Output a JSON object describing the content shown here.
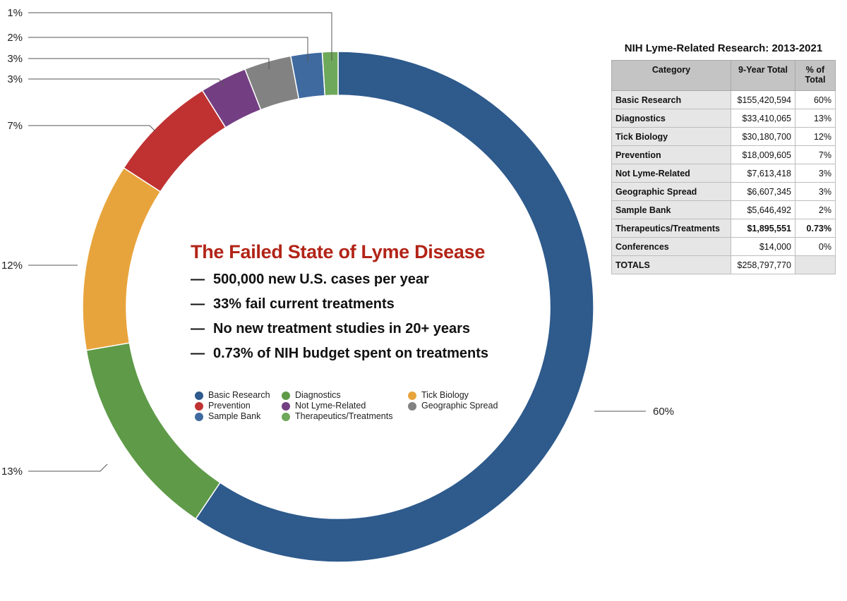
{
  "chart_data": {
    "type": "pie",
    "title": "",
    "donut": true,
    "slices": [
      {
        "name": "Basic Research",
        "value": 60,
        "label": "60%",
        "color": "#2e5a8c"
      },
      {
        "name": "Diagnostics",
        "value": 13,
        "label": "13%",
        "color": "#5e9a48"
      },
      {
        "name": "Tick Biology",
        "value": 12,
        "label": "12%",
        "color": "#e8a43c"
      },
      {
        "name": "Prevention",
        "value": 7,
        "label": "7%",
        "color": "#c03232"
      },
      {
        "name": "Not Lyme-Related",
        "value": 3,
        "label": "3%",
        "color": "#733f82"
      },
      {
        "name": "Geographic Spread",
        "value": 3,
        "label": "3%",
        "color": "#828282"
      },
      {
        "name": "Sample Bank",
        "value": 2,
        "label": "2%",
        "color": "#3f6aa0"
      },
      {
        "name": "Therapeutics/Treatments",
        "value": 1,
        "label": "1%",
        "color": "#6ea85a"
      }
    ],
    "legend_placement": "center"
  },
  "center": {
    "title": "The Failed State of Lyme Disease",
    "bullets": [
      "500,000 new U.S. cases per year",
      "33% fail current treatments",
      "No new treatment studies in 20+ years",
      "0.73% of NIH budget spent on treatments"
    ],
    "dash": "—"
  },
  "legend": [
    {
      "name": "Basic Research",
      "color": "#2e5a8c"
    },
    {
      "name": "Diagnostics",
      "color": "#5e9a48"
    },
    {
      "name": "Tick Biology",
      "color": "#e8a43c"
    },
    {
      "name": "Prevention",
      "color": "#c03232"
    },
    {
      "name": "Not Lyme-Related",
      "color": "#733f82"
    },
    {
      "name": "Geographic Spread",
      "color": "#828282"
    },
    {
      "name": "Sample Bank",
      "color": "#3f6aa0"
    },
    {
      "name": "Therapeutics/Treatments",
      "color": "#6ea85a"
    }
  ],
  "table": {
    "title": "NIH Lyme-Related Research: 2013-2021",
    "headers": [
      "Category",
      "9-Year Total",
      "% of Total"
    ],
    "rows": [
      {
        "category": "Basic Research",
        "total": "$155,420,594",
        "pct": "60%"
      },
      {
        "category": "Diagnostics",
        "total": "$33,410,065",
        "pct": "13%"
      },
      {
        "category": "Tick Biology",
        "total": "$30,180,700",
        "pct": "12%"
      },
      {
        "category": "Prevention",
        "total": "$18,009,605",
        "pct": "7%"
      },
      {
        "category": "Not Lyme-Related",
        "total": "$7,613,418",
        "pct": "3%"
      },
      {
        "category": "Geographic Spread",
        "total": "$6,607,345",
        "pct": "3%"
      },
      {
        "category": "Sample Bank",
        "total": "$5,646,492",
        "pct": "2%"
      },
      {
        "category": "Therapeutics/Treatments",
        "total": "$1,895,551",
        "pct": "0.73%",
        "bold": true
      },
      {
        "category": "Conferences",
        "total": "$14,000",
        "pct": "0%"
      },
      {
        "category": "TOTALS",
        "total": "$258,797,770",
        "pct": "",
        "totals": true
      }
    ]
  }
}
